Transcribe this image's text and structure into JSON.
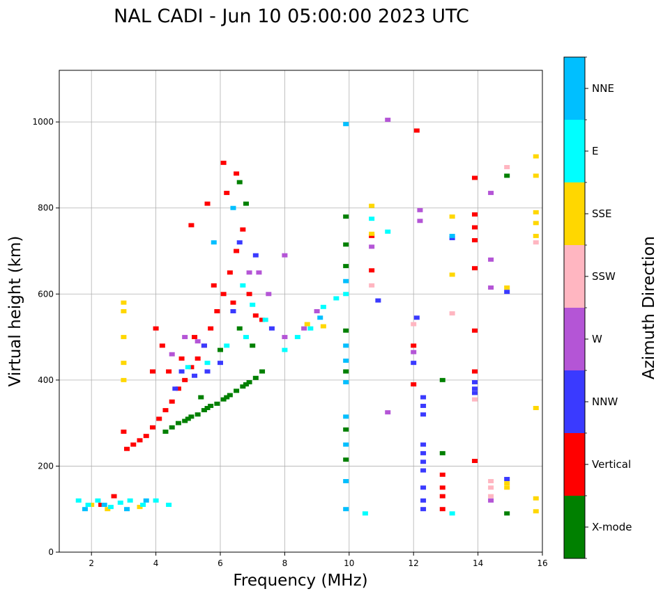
{
  "chart_data": {
    "type": "scatter",
    "title": "NAL CADI - Jun 10 05:00:00 2023 UTC",
    "xlabel": "Frequency (MHz)",
    "ylabel": "Virtual height (km)",
    "xlim": [
      1,
      16
    ],
    "ylim": [
      0,
      1120
    ],
    "x_ticks": [
      2,
      4,
      6,
      8,
      10,
      12,
      14,
      16
    ],
    "y_ticks": [
      0,
      200,
      400,
      600,
      800,
      1000
    ],
    "grid": true,
    "colorbar": {
      "label": "Azimuth Direction",
      "entries": [
        {
          "name": "X-mode",
          "color": "#008000"
        },
        {
          "name": "Vertical",
          "color": "#ff0000"
        },
        {
          "name": "NNW",
          "color": "#3a3aff"
        },
        {
          "name": "W",
          "color": "#b455d6"
        },
        {
          "name": "SSW",
          "color": "#ffb6c1"
        },
        {
          "name": "SSE",
          "color": "#ffd700"
        },
        {
          "name": "E",
          "color": "#00ffff"
        },
        {
          "name": "NNE",
          "color": "#00bfff"
        }
      ]
    },
    "series": [
      {
        "name": "X-mode",
        "points": [
          [
            4.3,
            280
          ],
          [
            4.5,
            290
          ],
          [
            4.7,
            300
          ],
          [
            4.9,
            305
          ],
          [
            5.1,
            315
          ],
          [
            5.3,
            320
          ],
          [
            5.5,
            330
          ],
          [
            5.7,
            340
          ],
          [
            5.9,
            345
          ],
          [
            6.1,
            355
          ],
          [
            6.3,
            365
          ],
          [
            6.5,
            375
          ],
          [
            6.7,
            385
          ],
          [
            6.9,
            395
          ],
          [
            7.1,
            405
          ],
          [
            7.3,
            420
          ],
          [
            5.0,
            310
          ],
          [
            5.6,
            335
          ],
          [
            6.2,
            360
          ],
          [
            6.8,
            390
          ],
          [
            5.4,
            360
          ],
          [
            6.0,
            470
          ],
          [
            6.6,
            520
          ],
          [
            7.0,
            480
          ],
          [
            9.9,
            780
          ],
          [
            9.9,
            715
          ],
          [
            9.9,
            665
          ],
          [
            9.9,
            515
          ],
          [
            9.9,
            420
          ],
          [
            9.9,
            285
          ],
          [
            9.9,
            215
          ],
          [
            12.9,
            400
          ],
          [
            12.9,
            230
          ],
          [
            14.9,
            875
          ],
          [
            14.9,
            90
          ],
          [
            6.8,
            810
          ],
          [
            6.6,
            860
          ]
        ]
      },
      {
        "name": "Vertical",
        "points": [
          [
            3.1,
            240
          ],
          [
            3.3,
            250
          ],
          [
            3.5,
            260
          ],
          [
            3.7,
            270
          ],
          [
            3.9,
            290
          ],
          [
            4.1,
            310
          ],
          [
            4.3,
            330
          ],
          [
            4.5,
            350
          ],
          [
            4.7,
            380
          ],
          [
            4.9,
            400
          ],
          [
            5.1,
            430
          ],
          [
            5.3,
            450
          ],
          [
            5.5,
            480
          ],
          [
            5.7,
            520
          ],
          [
            5.9,
            560
          ],
          [
            6.1,
            600
          ],
          [
            6.3,
            650
          ],
          [
            6.5,
            700
          ],
          [
            6.7,
            750
          ],
          [
            6.9,
            600
          ],
          [
            7.1,
            550
          ],
          [
            6.5,
            880
          ],
          [
            6.1,
            905
          ],
          [
            6.2,
            835
          ],
          [
            5.6,
            810
          ],
          [
            5.1,
            760
          ],
          [
            4.2,
            480
          ],
          [
            4.0,
            520
          ],
          [
            3.9,
            420
          ],
          [
            2.7,
            130
          ],
          [
            2.3,
            110
          ],
          [
            3.0,
            280
          ],
          [
            4.4,
            420
          ],
          [
            4.8,
            450
          ],
          [
            5.2,
            500
          ],
          [
            5.8,
            620
          ],
          [
            6.4,
            580
          ],
          [
            7.3,
            540
          ],
          [
            10.7,
            735
          ],
          [
            10.7,
            655
          ],
          [
            12.1,
            980
          ],
          [
            12.9,
            180
          ],
          [
            12.9,
            130
          ],
          [
            12.9,
            100
          ],
          [
            12.9,
            150
          ],
          [
            13.9,
            870
          ],
          [
            13.9,
            785
          ],
          [
            13.9,
            755
          ],
          [
            13.9,
            725
          ],
          [
            13.9,
            660
          ],
          [
            13.9,
            515
          ],
          [
            13.9,
            420
          ],
          [
            13.9,
            212
          ],
          [
            12.0,
            480
          ],
          [
            12.0,
            390
          ]
        ]
      },
      {
        "name": "NNW",
        "points": [
          [
            4.8,
            420
          ],
          [
            5.2,
            410
          ],
          [
            5.6,
            420
          ],
          [
            6.0,
            440
          ],
          [
            6.6,
            720
          ],
          [
            7.1,
            690
          ],
          [
            6.4,
            560
          ],
          [
            5.5,
            480
          ],
          [
            4.6,
            380
          ],
          [
            7.6,
            520
          ],
          [
            12.3,
            360
          ],
          [
            12.3,
            340
          ],
          [
            12.3,
            320
          ],
          [
            12.3,
            250
          ],
          [
            12.3,
            230
          ],
          [
            12.3,
            210
          ],
          [
            12.3,
            190
          ],
          [
            12.3,
            150
          ],
          [
            12.3,
            120
          ],
          [
            12.3,
            100
          ],
          [
            13.2,
            730
          ],
          [
            14.9,
            605
          ],
          [
            14.9,
            170
          ],
          [
            13.9,
            395
          ],
          [
            13.9,
            380
          ],
          [
            13.9,
            370
          ],
          [
            10.9,
            585
          ],
          [
            12.1,
            545
          ],
          [
            12.0,
            440
          ]
        ]
      },
      {
        "name": "W",
        "points": [
          [
            4.5,
            460
          ],
          [
            4.9,
            500
          ],
          [
            5.3,
            490
          ],
          [
            6.9,
            650
          ],
          [
            7.2,
            650
          ],
          [
            7.5,
            600
          ],
          [
            8.0,
            500
          ],
          [
            8.6,
            520
          ],
          [
            9.0,
            560
          ],
          [
            12.2,
            795
          ],
          [
            12.2,
            770
          ],
          [
            14.4,
            835
          ],
          [
            14.4,
            680
          ],
          [
            14.4,
            615
          ],
          [
            14.4,
            120
          ],
          [
            11.2,
            1005
          ],
          [
            11.2,
            325
          ],
          [
            12.0,
            465
          ],
          [
            10.7,
            710
          ],
          [
            8.0,
            690
          ]
        ]
      },
      {
        "name": "SSW",
        "points": [
          [
            14.4,
            165
          ],
          [
            14.4,
            150
          ],
          [
            14.4,
            130
          ],
          [
            13.9,
            355
          ],
          [
            14.9,
            895
          ],
          [
            15.8,
            720
          ],
          [
            12.0,
            530
          ],
          [
            13.2,
            555
          ],
          [
            10.7,
            620
          ]
        ]
      },
      {
        "name": "SSE",
        "points": [
          [
            3.0,
            580
          ],
          [
            3.0,
            560
          ],
          [
            3.0,
            500
          ],
          [
            3.0,
            440
          ],
          [
            3.0,
            400
          ],
          [
            2.0,
            110
          ],
          [
            2.5,
            100
          ],
          [
            3.5,
            105
          ],
          [
            15.8,
            920
          ],
          [
            15.8,
            875
          ],
          [
            15.8,
            790
          ],
          [
            15.8,
            765
          ],
          [
            15.8,
            735
          ],
          [
            15.8,
            335
          ],
          [
            15.8,
            125
          ],
          [
            15.8,
            95
          ],
          [
            14.9,
            615
          ],
          [
            14.9,
            160
          ],
          [
            14.9,
            150
          ],
          [
            13.2,
            780
          ],
          [
            13.2,
            645
          ],
          [
            10.7,
            805
          ],
          [
            10.7,
            740
          ],
          [
            8.7,
            530
          ],
          [
            9.2,
            525
          ]
        ]
      },
      {
        "name": "E",
        "points": [
          [
            1.6,
            120
          ],
          [
            1.9,
            110
          ],
          [
            2.2,
            120
          ],
          [
            2.6,
            105
          ],
          [
            2.9,
            115
          ],
          [
            3.2,
            120
          ],
          [
            3.6,
            110
          ],
          [
            4.0,
            120
          ],
          [
            4.4,
            110
          ],
          [
            5.0,
            430
          ],
          [
            5.6,
            440
          ],
          [
            6.2,
            480
          ],
          [
            6.8,
            500
          ],
          [
            7.4,
            540
          ],
          [
            8.0,
            470
          ],
          [
            8.4,
            500
          ],
          [
            8.8,
            520
          ],
          [
            9.2,
            570
          ],
          [
            9.6,
            590
          ],
          [
            10.5,
            90
          ],
          [
            13.2,
            90
          ],
          [
            11.2,
            745
          ],
          [
            10.7,
            775
          ],
          [
            9.9,
            600
          ],
          [
            6.7,
            620
          ],
          [
            7.0,
            575
          ]
        ]
      },
      {
        "name": "NNE",
        "points": [
          [
            1.8,
            100
          ],
          [
            2.4,
            110
          ],
          [
            3.1,
            100
          ],
          [
            3.7,
            120
          ],
          [
            9.9,
            995
          ],
          [
            9.9,
            630
          ],
          [
            9.9,
            480
          ],
          [
            9.9,
            445
          ],
          [
            9.9,
            395
          ],
          [
            9.9,
            315
          ],
          [
            9.9,
            250
          ],
          [
            9.9,
            165
          ],
          [
            9.9,
            100
          ],
          [
            6.4,
            800
          ],
          [
            5.8,
            720
          ],
          [
            9.1,
            545
          ],
          [
            13.2,
            735
          ]
        ]
      }
    ]
  }
}
